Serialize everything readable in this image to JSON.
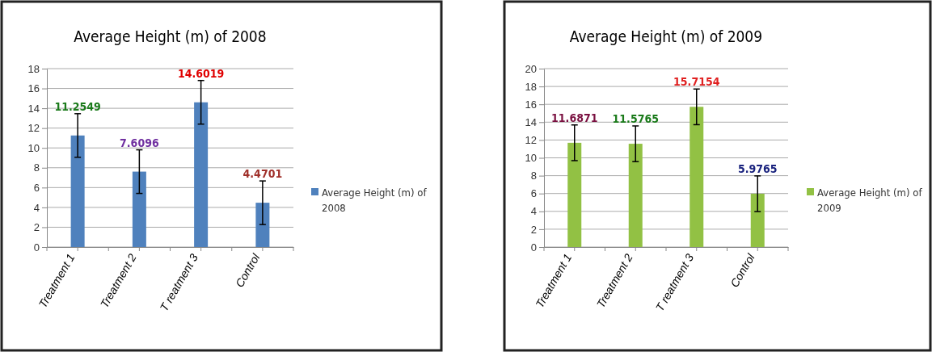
{
  "chart_data": [
    {
      "type": "bar",
      "title": "Average Height (m) of  2008",
      "categories": [
        "Treatment 1",
        "Treatment 2",
        "T reatment 3",
        "Control"
      ],
      "series": [
        {
          "name": "Average Height (m) of 2008",
          "color": "#4f81bd",
          "values": [
            11.2549,
            7.6096,
            14.6019,
            4.4701
          ],
          "errors": [
            2.2,
            2.2,
            2.2,
            2.2
          ]
        }
      ],
      "ylim": [
        0,
        18
      ],
      "yticks": [
        0,
        2,
        4,
        6,
        8,
        10,
        12,
        14,
        16,
        18
      ],
      "grid": "y",
      "legend": "right",
      "data_labels": true
    },
    {
      "type": "bar",
      "title": "Average Height (m) of  2009",
      "categories": [
        "Treatment 1",
        "Treatment 2",
        "T reatment 3",
        "Control"
      ],
      "series": [
        {
          "name": "Average Height (m) of 2009",
          "color": "#92c144",
          "values": [
            11.6871,
            11.5765,
            15.7154,
            5.9765
          ],
          "errors": [
            2,
            2,
            2,
            2
          ]
        }
      ],
      "ylim": [
        0,
        20
      ],
      "yticks": [
        0,
        2,
        4,
        6,
        8,
        10,
        12,
        14,
        16,
        18,
        20
      ],
      "grid": "y",
      "legend": "right",
      "data_labels": true
    }
  ]
}
